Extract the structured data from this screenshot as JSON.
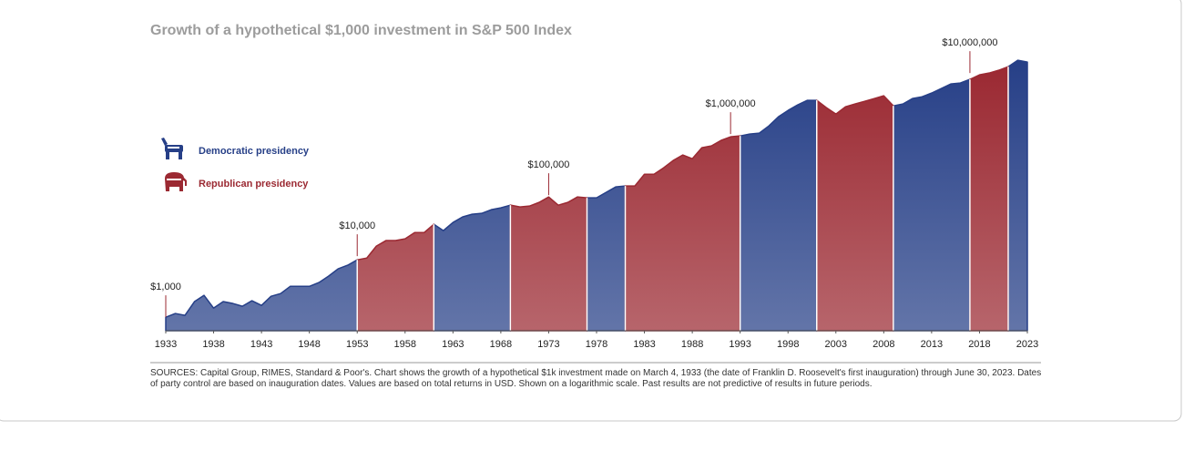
{
  "chart_data": {
    "type": "area",
    "title": "Growth of a hypothetical $1,000 investment in S&P 500 Index",
    "x": [
      1933,
      1934,
      1935,
      1936,
      1937,
      1938,
      1939,
      1940,
      1941,
      1942,
      1943,
      1944,
      1945,
      1946,
      1947,
      1948,
      1949,
      1950,
      1951,
      1952,
      1953,
      1954,
      1955,
      1956,
      1957,
      1958,
      1959,
      1960,
      1961,
      1962,
      1963,
      1964,
      1965,
      1966,
      1967,
      1968,
      1969,
      1970,
      1971,
      1972,
      1973,
      1974,
      1975,
      1976,
      1977,
      1978,
      1979,
      1980,
      1981,
      1982,
      1983,
      1984,
      1985,
      1986,
      1987,
      1988,
      1989,
      1990,
      1991,
      1992,
      1993,
      1994,
      1995,
      1996,
      1997,
      1998,
      1999,
      2000,
      2001,
      2002,
      2003,
      2004,
      2005,
      2006,
      2007,
      2008,
      2009,
      2010,
      2011,
      2012,
      2013,
      2014,
      2015,
      2016,
      2017,
      2018,
      2019,
      2020,
      2021,
      2022,
      2023
    ],
    "series": [
      {
        "name": "Democratic presidency",
        "color": "#263f87",
        "values": [
          1000,
          1150,
          1070,
          1800,
          2280,
          1410,
          1800,
          1680,
          1510,
          1860,
          1560,
          2200,
          2440,
          3200,
          3200,
          3200,
          3700,
          4700,
          6200,
          7100,
          8700,
          null,
          null,
          null,
          null,
          null,
          null,
          null,
          33300,
          26200,
          35600,
          43900,
          48600,
          50300,
          57700,
          61800,
          68500,
          null,
          null,
          null,
          null,
          null,
          null,
          null,
          90200,
          90200,
          110900,
          136200,
          141000,
          null,
          null,
          null,
          null,
          null,
          null,
          null,
          null,
          null,
          null,
          null,
          933000,
          1000000,
          1035000,
          1360000,
          1920000,
          2440000,
          3000000,
          3570000,
          3570000,
          null,
          null,
          null,
          null,
          null,
          null,
          null,
          2900000,
          3110000,
          3820000,
          4090000,
          4700000,
          5580000,
          6620000,
          6860000,
          7870000,
          null,
          null,
          null,
          12710000,
          16180000,
          15110000
        ]
      },
      {
        "name": "Republican presidency",
        "color": "#9b2932",
        "values": [
          null,
          null,
          null,
          null,
          null,
          null,
          null,
          null,
          null,
          null,
          null,
          null,
          null,
          null,
          null,
          null,
          null,
          null,
          null,
          null,
          8700,
          9300,
          14600,
          18000,
          18000,
          19200,
          24400,
          24400,
          33300,
          null,
          null,
          null,
          null,
          null,
          null,
          null,
          68500,
          64000,
          66200,
          76000,
          93300,
          68500,
          76000,
          93300,
          90200,
          null,
          null,
          null,
          141000,
          141000,
          220000,
          220000,
          280000,
          369000,
          454000,
          395000,
          597000,
          640000,
          787000,
          902000,
          933000,
          null,
          null,
          null,
          null,
          null,
          null,
          null,
          3570000,
          2710000,
          2130000,
          2800000,
          3110000,
          3440000,
          3820000,
          4240000,
          2900000,
          null,
          null,
          null,
          null,
          null,
          null,
          null,
          7870000,
          9340000,
          10000000,
          11090000,
          12710000,
          null,
          null
        ]
      }
    ],
    "xlim": [
      1933,
      2023
    ],
    "xticks": [
      1933,
      1938,
      1943,
      1948,
      1953,
      1958,
      1963,
      1968,
      1973,
      1978,
      1983,
      1988,
      1993,
      1998,
      2003,
      2008,
      2013,
      2018,
      2023
    ],
    "ylim": [
      600,
      20000000
    ],
    "log_scale": true,
    "annotations": [
      {
        "x": 1933,
        "value": 1000,
        "label": "$1,000"
      },
      {
        "x": 1953,
        "value": 10000,
        "label": "$10,000"
      },
      {
        "x": 1973,
        "value": 100000,
        "label": "$100,000"
      },
      {
        "x": 1992,
        "value": 1000000,
        "label": "$1,000,000"
      },
      {
        "x": 2017,
        "value": 10000000,
        "label": "$10,000,000"
      }
    ],
    "notes": "SOURCES: Capital Group, RIMES, Standard & Poor's. Chart shows the growth of a hypothetical $1k investment made on March 4, 1933 (the date of Franklin D. Roosevelt's first inauguration) through June 30, 2023.  Dates of party control are based on inauguration dates. Values are based on total returns in USD. Shown on a logarithmic scale. Past results are not predictive of results in future periods."
  }
}
